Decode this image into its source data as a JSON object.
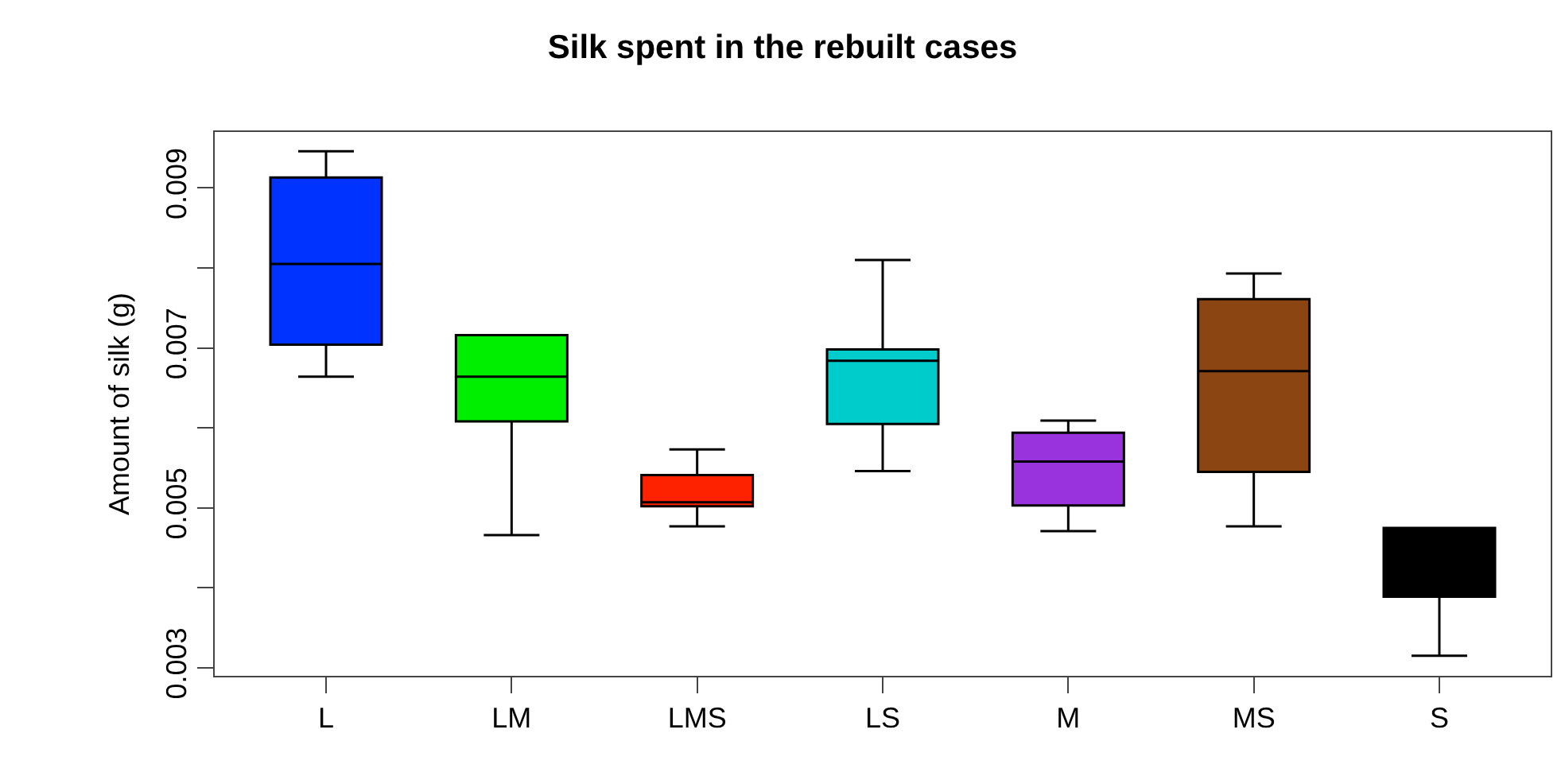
{
  "chart_data": {
    "type": "box",
    "title": "Silk spent in the rebuilt cases",
    "ylabel": "Amount of silk (g)",
    "categories": [
      "L",
      "LM",
      "LMS",
      "LS",
      "M",
      "MS",
      "S"
    ],
    "colors": [
      "#0033ff",
      "#00ee00",
      "#ff2200",
      "#00cccc",
      "#9933dd",
      "#8b4513",
      "#000000"
    ],
    "boxes": [
      {
        "low": 0.00664,
        "q1": 0.00704,
        "median": 0.00805,
        "q3": 0.00913,
        "high": 0.00946
      },
      {
        "low": 0.00466,
        "q1": 0.00608,
        "median": 0.00664,
        "q3": 0.00716,
        "high": 0.00716
      },
      {
        "low": 0.00477,
        "q1": 0.00502,
        "median": 0.00507,
        "q3": 0.00541,
        "high": 0.00573
      },
      {
        "low": 0.00546,
        "q1": 0.00605,
        "median": 0.00684,
        "q3": 0.00698,
        "high": 0.0081
      },
      {
        "low": 0.00471,
        "q1": 0.00503,
        "median": 0.00558,
        "q3": 0.00594,
        "high": 0.00609
      },
      {
        "low": 0.00477,
        "q1": 0.00545,
        "median": 0.00671,
        "q3": 0.00761,
        "high": 0.00793
      },
      {
        "low": 0.00315,
        "q1": 0.00389,
        "median": 0.0043,
        "q3": 0.00475,
        "high": 0.00475
      }
    ],
    "ylim": [
      0.0029,
      0.0097
    ],
    "yticks": [
      0.003,
      {
        "value": 0.004,
        "label": null
      },
      0.005,
      {
        "value": 0.006,
        "label": null
      },
      0.007,
      {
        "value": 0.008,
        "label": null
      },
      0.009
    ],
    "grid": false,
    "legend": false
  }
}
